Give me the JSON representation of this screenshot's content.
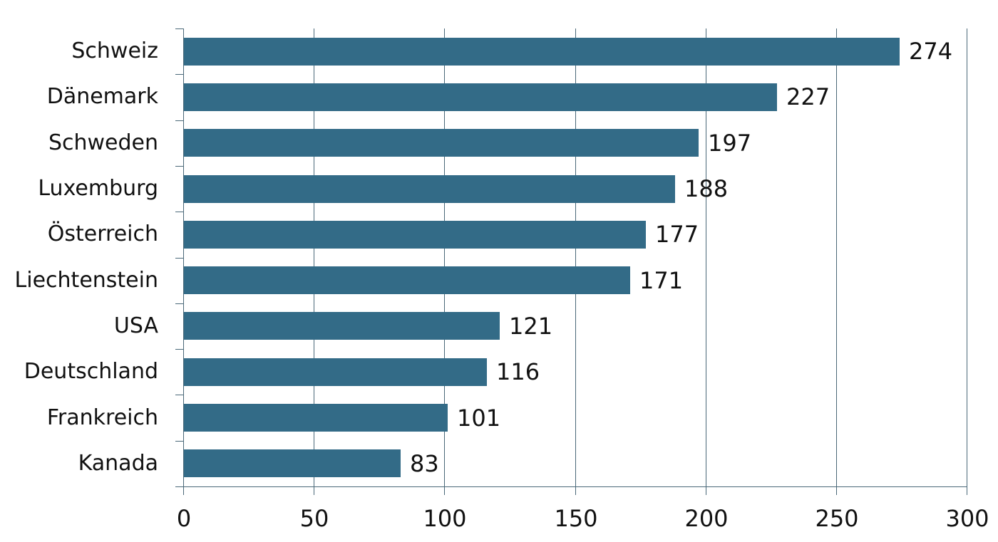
{
  "chart_data": {
    "type": "bar",
    "orientation": "horizontal",
    "title": "",
    "xlabel": "",
    "ylabel": "",
    "categories": [
      "Schweiz",
      "Dänemark",
      "Schweden",
      "Luxemburg",
      "Österreich",
      "Liechtenstein",
      "USA",
      "Deutschland",
      "Frankreich",
      "Kanada"
    ],
    "values": [
      274,
      227,
      197,
      188,
      177,
      171,
      121,
      116,
      101,
      83
    ],
    "value_labels": [
      "274",
      "227",
      "197",
      "188",
      "177",
      "171",
      "121",
      "116",
      "101",
      "83"
    ],
    "xlim": [
      0,
      300
    ],
    "xticks": [
      0,
      50,
      100,
      150,
      200,
      250,
      300
    ],
    "xtick_labels": [
      "0",
      "50",
      "100",
      "150",
      "200",
      "250",
      "300"
    ],
    "grid": {
      "vertical": true,
      "horizontal": false
    },
    "legend": null,
    "colors": {
      "bar": "#336b87",
      "grid": "#4a6878"
    }
  }
}
